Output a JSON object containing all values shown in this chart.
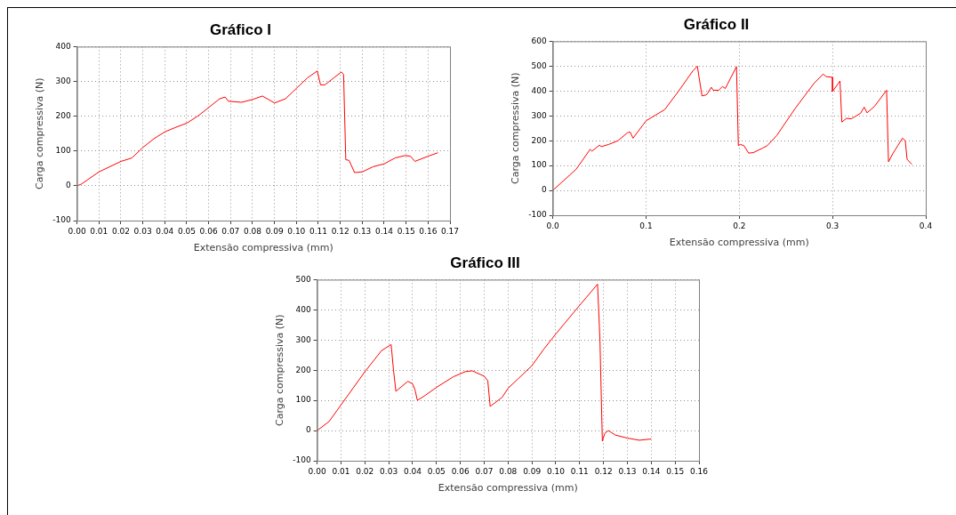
{
  "chart_data": [
    {
      "type": "line",
      "title": "Gráfico I",
      "xlabel": "Extensão compressiva (mm)",
      "ylabel": "Carga compressiva (N)",
      "grid": true,
      "xlim": [
        0,
        0.17
      ],
      "ylim": [
        -100,
        400
      ],
      "xticks": [
        {
          "value": 0,
          "label": "0.00"
        },
        {
          "value": 0.01,
          "label": "0.01"
        },
        {
          "value": 0.02,
          "label": "0.02"
        },
        {
          "value": 0.03,
          "label": "0.03"
        },
        {
          "value": 0.04,
          "label": "0.04"
        },
        {
          "value": 0.05,
          "label": "0.05"
        },
        {
          "value": 0.06,
          "label": "0.06"
        },
        {
          "value": 0.07,
          "label": "0.07"
        },
        {
          "value": 0.08,
          "label": "0.08"
        },
        {
          "value": 0.09,
          "label": "0.09"
        },
        {
          "value": 0.1,
          "label": "0.10"
        },
        {
          "value": 0.11,
          "label": "0.11"
        },
        {
          "value": 0.12,
          "label": "0.12"
        },
        {
          "value": 0.13,
          "label": "0.13"
        },
        {
          "value": 0.14,
          "label": "0.14"
        },
        {
          "value": 0.15,
          "label": "0.15"
        },
        {
          "value": 0.16,
          "label": "0.16"
        },
        {
          "value": 0.17,
          "label": "0.17"
        }
      ],
      "yticks": [
        -100,
        0,
        100,
        200,
        300,
        400
      ],
      "x": [
        0,
        0.002,
        0.01,
        0.02,
        0.025,
        0.03,
        0.035,
        0.04,
        0.045,
        0.05,
        0.055,
        0.06,
        0.065,
        0.0675,
        0.069,
        0.075,
        0.08,
        0.0845,
        0.09,
        0.095,
        0.1,
        0.105,
        0.1095,
        0.111,
        0.113,
        0.117,
        0.1205,
        0.1215,
        0.1225,
        0.124,
        0.1265,
        0.13,
        0.135,
        0.14,
        0.145,
        0.1495,
        0.152,
        0.154,
        0.16,
        0.1645
      ],
      "series": [
        {
          "color": "#ff0000",
          "values": [
            0,
            5,
            40,
            70,
            80,
            110,
            135,
            155,
            168,
            180,
            200,
            225,
            250,
            255,
            243,
            240,
            248,
            258,
            238,
            250,
            280,
            310,
            330,
            290,
            290,
            310,
            327,
            320,
            75,
            73,
            38,
            40,
            55,
            63,
            80,
            87,
            85,
            70,
            85,
            95
          ]
        }
      ]
    },
    {
      "type": "line",
      "title": "Gráfico II",
      "xlabel": "Extensão compressiva (mm)",
      "ylabel": "Carga compressiva (N)",
      "grid": true,
      "xlim": [
        0,
        0.4
      ],
      "ylim": [
        -100,
        600
      ],
      "xticks": [
        {
          "value": 0,
          "label": "0.0"
        },
        {
          "value": 0.1,
          "label": "0.1"
        },
        {
          "value": 0.2,
          "label": "0.2"
        },
        {
          "value": 0.3,
          "label": "0.3"
        },
        {
          "value": 0.4,
          "label": "0.4"
        }
      ],
      "yticks": [
        -100,
        0,
        100,
        200,
        300,
        400,
        500,
        600
      ],
      "x": [
        0,
        0.025,
        0.04,
        0.042,
        0.05,
        0.052,
        0.06,
        0.07,
        0.08,
        0.083,
        0.086,
        0.1,
        0.12,
        0.135,
        0.15,
        0.155,
        0.16,
        0.165,
        0.17,
        0.172,
        0.178,
        0.182,
        0.185,
        0.197,
        0.199,
        0.201,
        0.205,
        0.21,
        0.215,
        0.225,
        0.23,
        0.24,
        0.26,
        0.27,
        0.28,
        0.29,
        0.293,
        0.3,
        0.3,
        0.308,
        0.31,
        0.315,
        0.32,
        0.33,
        0.334,
        0.337,
        0.345,
        0.358,
        0.36,
        0.365,
        0.37,
        0.375,
        0.378,
        0.38,
        0.385
      ],
      "series": [
        {
          "color": "#ff0000",
          "values": [
            0,
            85,
            165,
            158,
            182,
            176,
            185,
            200,
            232,
            235,
            210,
            280,
            325,
            400,
            480,
            500,
            380,
            385,
            415,
            403,
            403,
            418,
            410,
            498,
            180,
            185,
            180,
            150,
            152,
            170,
            180,
            220,
            330,
            380,
            430,
            468,
            458,
            455,
            398,
            440,
            275,
            290,
            288,
            310,
            335,
            312,
            338,
            403,
            115,
            150,
            180,
            210,
            200,
            125,
            105
          ]
        }
      ]
    },
    {
      "type": "line",
      "title": "Gráfico III",
      "xlabel": "Extensão compressiva (mm)",
      "ylabel": "Carga compressiva (N)",
      "grid": true,
      "xlim": [
        0,
        0.16
      ],
      "ylim": [
        -100,
        500
      ],
      "xticks": [
        {
          "value": 0,
          "label": "0.00"
        },
        {
          "value": 0.01,
          "label": "0.01"
        },
        {
          "value": 0.02,
          "label": "0.02"
        },
        {
          "value": 0.03,
          "label": "0.03"
        },
        {
          "value": 0.04,
          "label": "0.04"
        },
        {
          "value": 0.05,
          "label": "0.05"
        },
        {
          "value": 0.06,
          "label": "0.06"
        },
        {
          "value": 0.07,
          "label": "0.07"
        },
        {
          "value": 0.08,
          "label": "0.08"
        },
        {
          "value": 0.09,
          "label": "0.09"
        },
        {
          "value": 0.1,
          "label": "0.10"
        },
        {
          "value": 0.11,
          "label": "0.11"
        },
        {
          "value": 0.12,
          "label": "0.12"
        },
        {
          "value": 0.13,
          "label": "0.13"
        },
        {
          "value": 0.14,
          "label": "0.14"
        },
        {
          "value": 0.15,
          "label": "0.15"
        },
        {
          "value": 0.16,
          "label": "0.16"
        }
      ],
      "yticks": [
        -100,
        0,
        100,
        200,
        300,
        400,
        500
      ],
      "x": [
        0,
        0.005,
        0.01,
        0.02,
        0.027,
        0.03,
        0.031,
        0.032,
        0.033,
        0.038,
        0.04,
        0.041,
        0.042,
        0.045,
        0.05,
        0.057,
        0.062,
        0.065,
        0.07,
        0.0715,
        0.0725,
        0.0775,
        0.08,
        0.09,
        0.095,
        0.1,
        0.11,
        0.1175,
        0.1185,
        0.1195,
        0.1205,
        0.122,
        0.125,
        0.13,
        0.135,
        0.14
      ],
      "series": [
        {
          "color": "#ff0000",
          "values": [
            0,
            30,
            85,
            195,
            265,
            280,
            285,
            200,
            130,
            163,
            155,
            135,
            100,
            115,
            143,
            178,
            195,
            198,
            180,
            165,
            80,
            110,
            140,
            215,
            270,
            320,
            415,
            485,
            300,
            -35,
            -10,
            0,
            -15,
            -25,
            -32,
            -28
          ]
        }
      ]
    }
  ]
}
